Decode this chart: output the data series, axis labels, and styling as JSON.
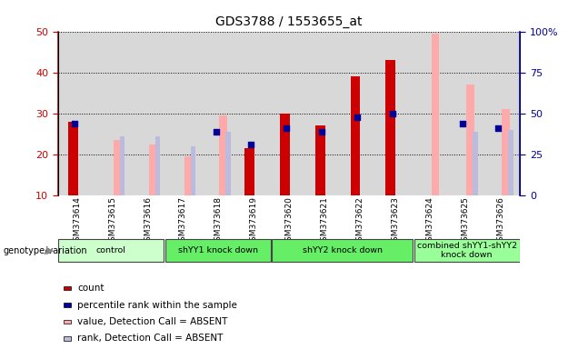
{
  "title": "GDS3788 / 1553655_at",
  "samples": [
    "GSM373614",
    "GSM373615",
    "GSM373616",
    "GSM373617",
    "GSM373618",
    "GSM373619",
    "GSM373620",
    "GSM373621",
    "GSM373622",
    "GSM373623",
    "GSM373624",
    "GSM373625",
    "GSM373626"
  ],
  "count": [
    28,
    0,
    0,
    0,
    0,
    21.5,
    30,
    27,
    39,
    43,
    0,
    0,
    0
  ],
  "percentile_rank": [
    27.5,
    0,
    0,
    0,
    25.5,
    22.5,
    26.5,
    25.5,
    29,
    30,
    0,
    27.5,
    26.5
  ],
  "value_absent": [
    0,
    23.5,
    22.5,
    19.5,
    29.5,
    0,
    0,
    0,
    0,
    0,
    49.5,
    37,
    31
  ],
  "rank_absent": [
    0,
    24.5,
    24.5,
    22,
    25.5,
    0,
    0,
    0,
    0,
    0,
    0,
    25.5,
    26
  ],
  "groups": [
    {
      "label": "control",
      "start": 0,
      "end": 3,
      "color": "#ccffcc"
    },
    {
      "label": "shYY1 knock down",
      "start": 3,
      "end": 6,
      "color": "#66ee66"
    },
    {
      "label": "shYY2 knock down",
      "start": 6,
      "end": 10,
      "color": "#66ee66"
    },
    {
      "label": "combined shYY1-shYY2\nknock down",
      "start": 10,
      "end": 13,
      "color": "#99ff99"
    }
  ],
  "ylim_left": [
    10,
    50
  ],
  "ylim_right": [
    0,
    100
  ],
  "left_ticks": [
    10,
    20,
    30,
    40,
    50
  ],
  "right_ticks": [
    0,
    25,
    50,
    75,
    100
  ],
  "left_tick_labels": [
    "10",
    "20",
    "30",
    "40",
    "50"
  ],
  "right_tick_labels": [
    "0",
    "25",
    "50",
    "75",
    "100%"
  ],
  "color_count": "#cc0000",
  "color_percentile": "#000099",
  "color_value_absent": "#ffaaaa",
  "color_rank_absent": "#bbbbdd",
  "legend_label_count": "count",
  "legend_label_percentile": "percentile rank within the sample",
  "legend_label_value_absent": "value, Detection Call = ABSENT",
  "legend_label_rank_absent": "rank, Detection Call = ABSENT",
  "genotype_label": "genotype/variation"
}
